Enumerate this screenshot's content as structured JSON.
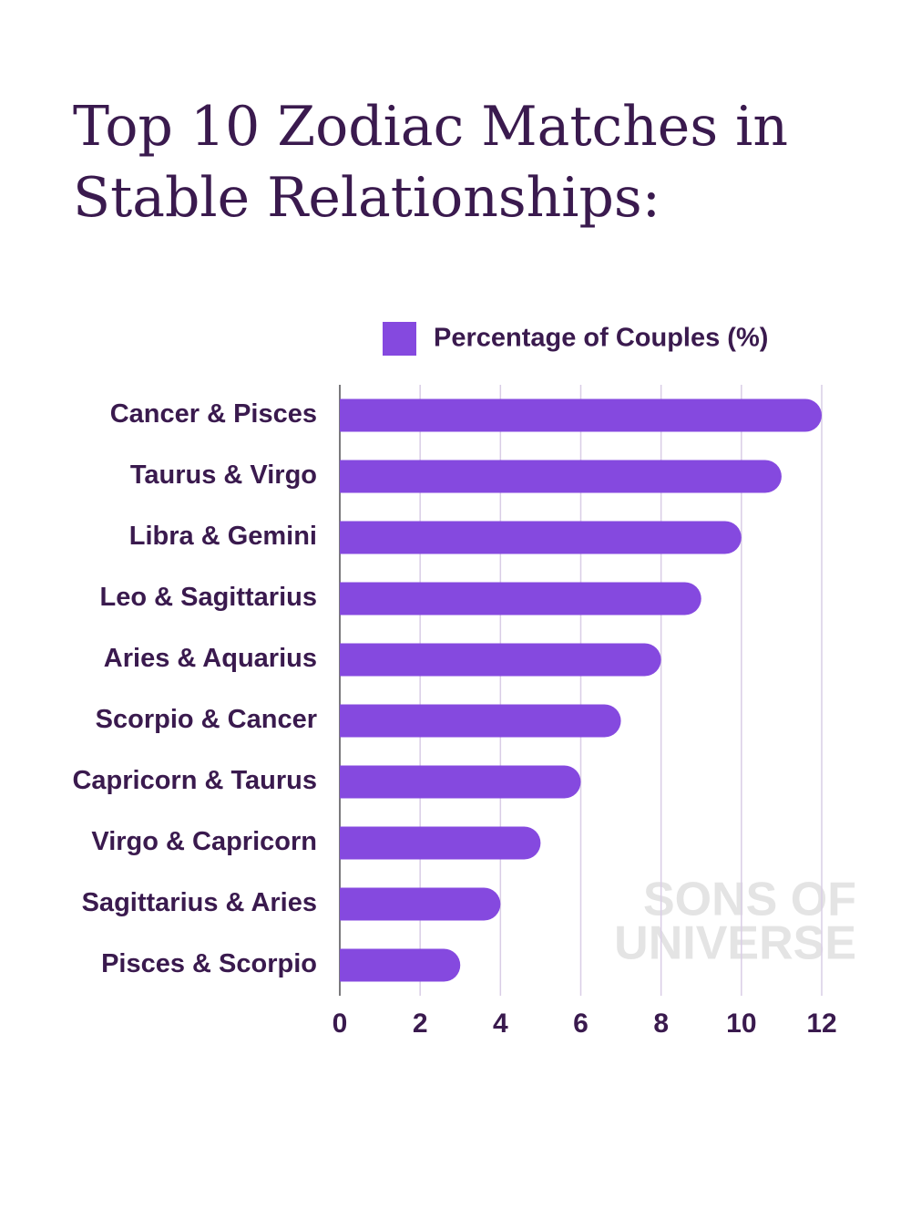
{
  "chart_data": {
    "type": "bar",
    "orientation": "horizontal",
    "title": "Top 10 Zodiac Matches in Stable Relationships:",
    "categories": [
      "Cancer & Pisces",
      "Taurus & Virgo",
      "Libra & Gemini",
      "Leo & Sagittarius",
      "Aries & Aquarius",
      "Scorpio & Cancer",
      "Capricorn & Taurus",
      "Virgo & Capricorn",
      "Sagittarius & Aries",
      "Pisces & Scorpio"
    ],
    "series": [
      {
        "name": "Percentage of Couples (%)",
        "color": "#8549df",
        "values": [
          12,
          11,
          10,
          9,
          8,
          7,
          6,
          5,
          4,
          3
        ]
      }
    ],
    "xlim": [
      0,
      12
    ],
    "xticks": [
      0,
      2,
      4,
      6,
      8,
      10,
      12
    ],
    "grid": true,
    "legend": "top",
    "watermark": [
      "SONS OF",
      "UNIVERSE"
    ]
  }
}
